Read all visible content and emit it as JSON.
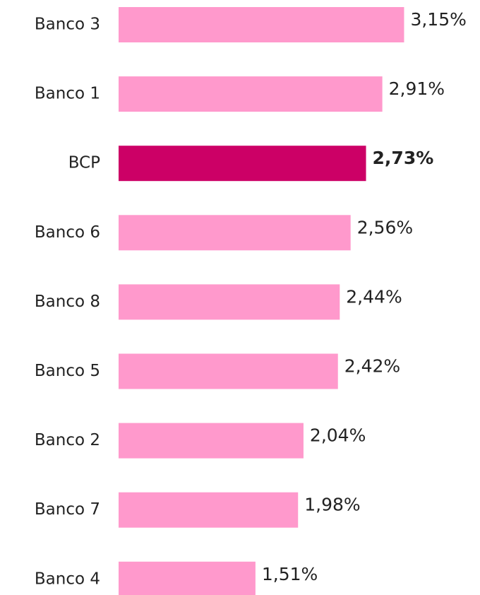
{
  "chart_data": {
    "type": "hbar",
    "categories": [
      "Banco 3",
      "Banco 1",
      "BCP",
      "Banco 6",
      "Banco 8",
      "Banco 5",
      "Banco 2",
      "Banco 7",
      "Banco 4"
    ],
    "values": [
      3.15,
      2.91,
      2.73,
      2.56,
      2.44,
      2.42,
      2.04,
      1.98,
      1.51
    ],
    "value_labels": [
      "3,15%",
      "2,91%",
      "2,73%",
      "2,56%",
      "2,44%",
      "2,42%",
      "2,04%",
      "1,98%",
      "1,51%"
    ],
    "colors": [
      "#ff99cc",
      "#ff99cc",
      "#cc0066",
      "#ff99cc",
      "#ff99cc",
      "#ff99cc",
      "#ff99cc",
      "#ff99cc",
      "#ff99cc"
    ],
    "value_label_weights": [
      "normal",
      "normal",
      "bold",
      "normal",
      "normal",
      "normal",
      "normal",
      "normal",
      "normal"
    ],
    "xlim": [
      0,
      4
    ]
  }
}
